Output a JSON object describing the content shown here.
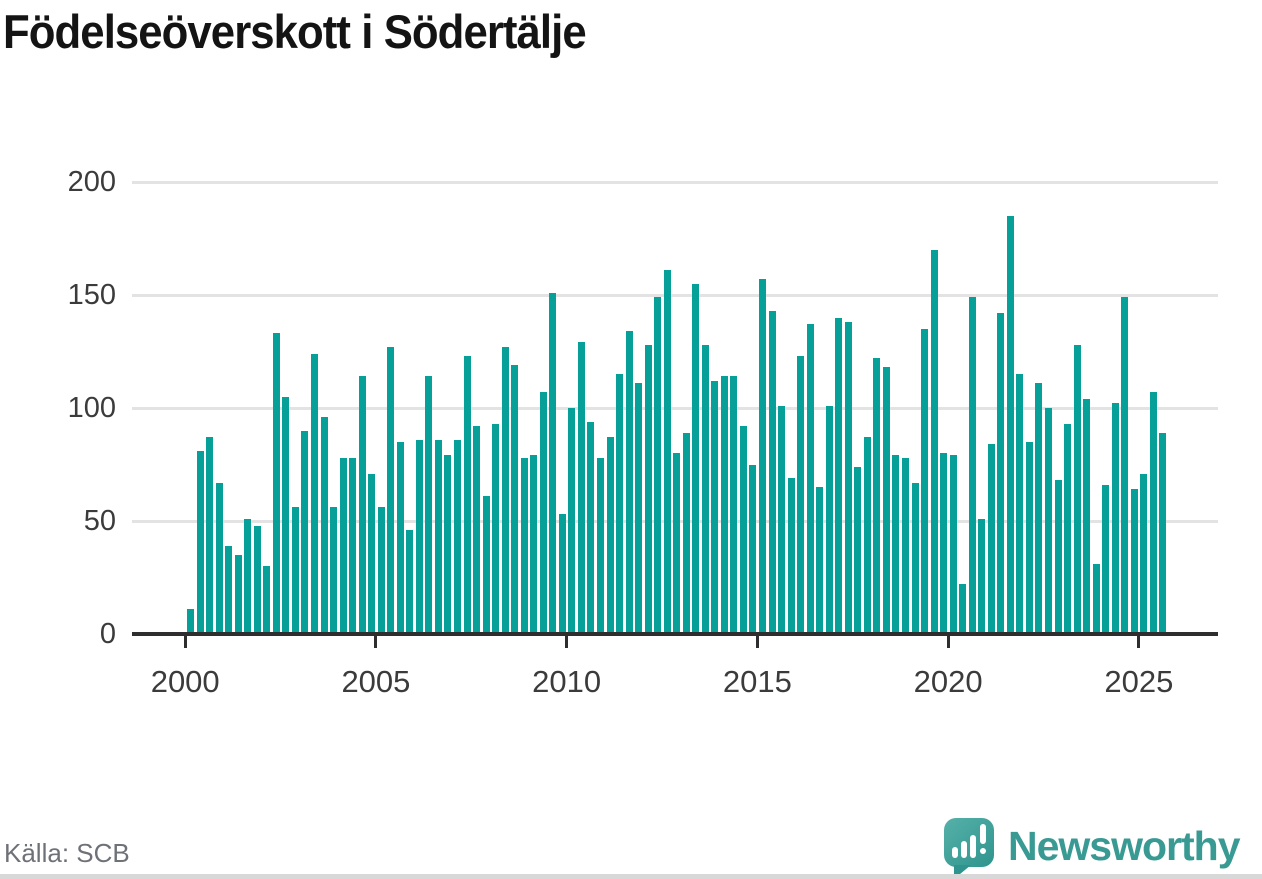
{
  "title": "Födelseöverskott i Södertälje",
  "footer": {
    "source": "Källa: SCB",
    "brand": "Newsworthy"
  },
  "colors": {
    "bar": "#07a099",
    "axis": "#2e2e2e",
    "grid": "#e3e3e3",
    "tick_label": "#3b3b3b",
    "source_text": "#6e7178",
    "brand_teal": "#399a94",
    "title_text": "#141414"
  },
  "chart_data": {
    "type": "bar",
    "title": "Födelseöverskott i Södertälje",
    "frequency": "quarterly",
    "series_start": "2000-Q1",
    "series_end": "2025-Q3",
    "values": [
      11,
      81,
      87,
      67,
      39,
      35,
      51,
      48,
      30,
      133,
      105,
      56,
      90,
      124,
      96,
      56,
      78,
      78,
      114,
      71,
      56,
      127,
      85,
      46,
      86,
      114,
      86,
      79,
      86,
      123,
      92,
      61,
      93,
      127,
      119,
      78,
      79,
      107,
      151,
      53,
      100,
      129,
      94,
      78,
      87,
      115,
      134,
      111,
      128,
      149,
      161,
      80,
      89,
      155,
      128,
      112,
      114,
      114,
      92,
      75,
      157,
      143,
      101,
      69,
      123,
      137,
      65,
      101,
      140,
      138,
      74,
      87,
      122,
      118,
      79,
      78,
      67,
      135,
      170,
      80,
      79,
      22,
      149,
      51,
      84,
      142,
      185,
      115,
      85,
      111,
      100,
      68,
      93,
      128,
      104,
      31,
      66,
      102,
      149,
      64,
      71,
      107,
      89
    ],
    "x_tick_years": [
      2000,
      2005,
      2010,
      2015,
      2020,
      2025
    ],
    "y_ticks": [
      0,
      50,
      100,
      150,
      200
    ],
    "ylim": [
      0,
      200
    ],
    "grid": true,
    "legend": false,
    "xlabel": "",
    "ylabel": ""
  }
}
